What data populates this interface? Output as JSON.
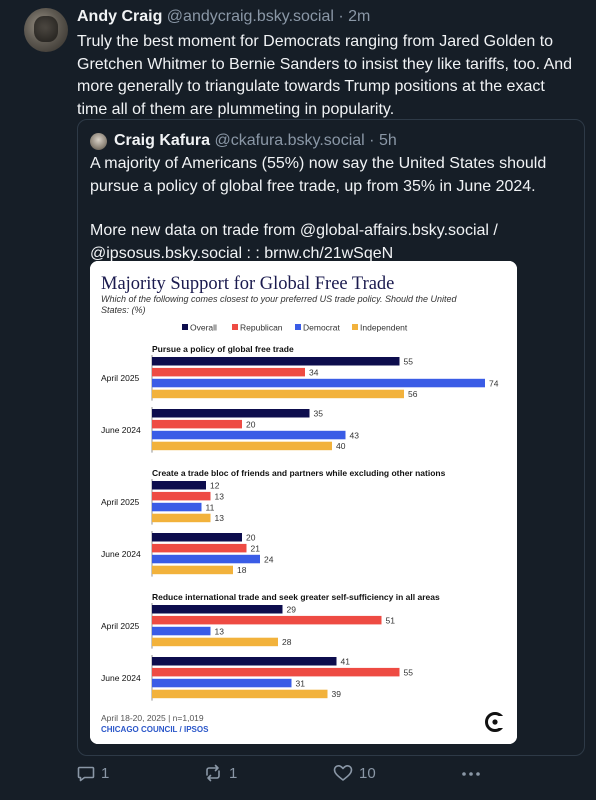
{
  "post": {
    "author_name": "Andy Craig",
    "author_handle": "@andycraig.bsky.social",
    "separator": "·",
    "time": "2m",
    "text": "Truly the best moment for Democrats ranging from Jared Golden to Gretchen Whitmer to Bernie Sanders to insist they like tariffs, too. And more generally to triangulate towards Trump positions at the exact time all of them are plummeting in popularity.",
    "reply_count": "1",
    "repost_count": "1",
    "like_count": "10",
    "icons": {
      "reply": "speech-bubble-icon",
      "repost": "repost-arrows-icon",
      "like": "heart-icon",
      "more": "ellipsis-icon"
    }
  },
  "quote": {
    "author_name": "Craig Kafura",
    "author_handle": "@ckafura.bsky.social",
    "separator": "·",
    "time": "5h",
    "text_1": "A majority of Americans (55%) now say the United States should pursue a policy of global free trade, up from 35% in June 2024.",
    "text_2": "More new data on trade from @global-affairs.bsky.social / @ipsosus.bsky.social : : brnw.ch/21wSqeN"
  },
  "chart_data": {
    "type": "bar",
    "orientation": "horizontal",
    "title": "Majority Support for Global Free Trade",
    "subtitle": "Which of the following comes closest to your preferred US trade policy. Should the United States: (%)",
    "legend_position": "top",
    "series": [
      {
        "name": "Overall",
        "color": "#0d0d4d"
      },
      {
        "name": "Republican",
        "color": "#ee4b43"
      },
      {
        "name": "Democrat",
        "color": "#3a5ce6"
      },
      {
        "name": "Independent",
        "color": "#f2b23c"
      }
    ],
    "x_range": [
      0,
      100
    ],
    "groups": [
      {
        "title": "Pursue a policy of global free trade",
        "rows": [
          {
            "label": "April 2025",
            "values": [
              55,
              34,
              74,
              56
            ]
          },
          {
            "label": "June 2024",
            "values": [
              35,
              20,
              43,
              40
            ]
          }
        ]
      },
      {
        "title": "Create a trade bloc of friends and partners while excluding other nations",
        "rows": [
          {
            "label": "April 2025",
            "values": [
              12,
              13,
              11,
              13
            ]
          },
          {
            "label": "June 2024",
            "values": [
              20,
              21,
              24,
              18
            ]
          }
        ]
      },
      {
        "title": "Reduce international trade and seek greater self-sufficiency in all areas",
        "rows": [
          {
            "label": "April 2025",
            "values": [
              29,
              51,
              13,
              28
            ]
          },
          {
            "label": "June 2024",
            "values": [
              41,
              55,
              31,
              39
            ]
          }
        ]
      }
    ],
    "footnote": "April 18-20, 2025 | n=1,019",
    "source": "CHICAGO COUNCIL / IPSOS",
    "logo": "chicago-council-logo"
  }
}
